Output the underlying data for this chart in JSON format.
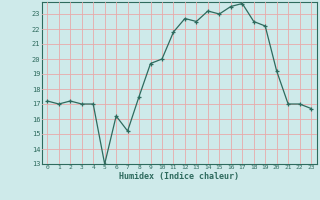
{
  "x": [
    0,
    1,
    2,
    3,
    4,
    5,
    6,
    7,
    8,
    9,
    10,
    11,
    12,
    13,
    14,
    15,
    16,
    17,
    18,
    19,
    20,
    21,
    22,
    23
  ],
  "y": [
    17.2,
    17.0,
    17.2,
    17.0,
    17.0,
    13.0,
    16.2,
    15.2,
    17.5,
    19.7,
    20.0,
    21.8,
    22.7,
    22.5,
    23.2,
    23.0,
    23.5,
    23.7,
    22.5,
    22.2,
    19.2,
    17.0,
    17.0,
    16.7
  ],
  "xlabel": "Humidex (Indice chaleur)",
  "ylabel": "",
  "xlim": [
    -0.5,
    23.5
  ],
  "ylim": [
    13,
    23.8
  ],
  "yticks": [
    13,
    14,
    15,
    16,
    17,
    18,
    19,
    20,
    21,
    22,
    23
  ],
  "xticks": [
    0,
    1,
    2,
    3,
    4,
    5,
    6,
    7,
    8,
    9,
    10,
    11,
    12,
    13,
    14,
    15,
    16,
    17,
    18,
    19,
    20,
    21,
    22,
    23
  ],
  "line_color": "#2e6b5e",
  "marker_color": "#2e6b5e",
  "bg_color": "#ceeaea",
  "grid_color": "#e8aaaa",
  "axis_color": "#2e6b5e",
  "tick_color": "#2e6b5e",
  "xlabel_color": "#2e6b5e"
}
